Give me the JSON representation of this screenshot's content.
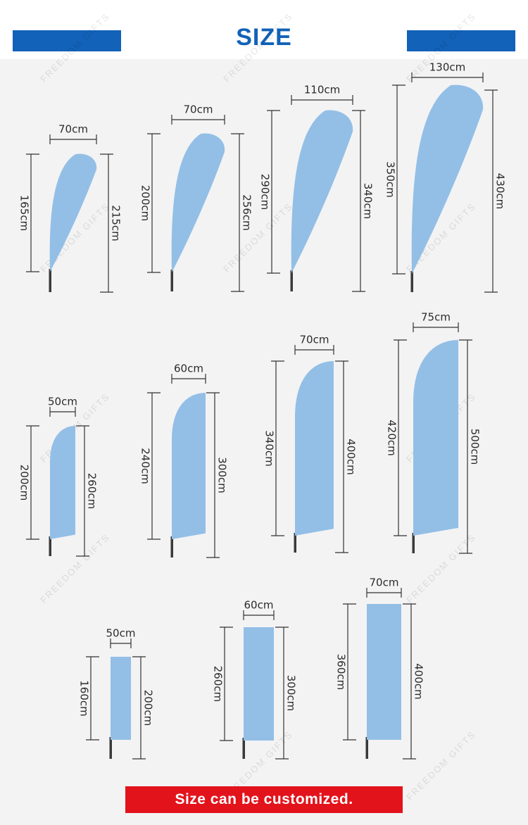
{
  "header": {
    "title": "SIZE"
  },
  "colors": {
    "brand_blue": "#1162b8",
    "flag_blue": "#93bfe6",
    "pole": "#3a3a3a",
    "footer_red": "#e3131b"
  },
  "watermark": "FREEDOM GIFTS",
  "flags": [
    {
      "shape": "feather",
      "width": "70cm",
      "flag_height": "165cm",
      "total_height": "215cm"
    },
    {
      "shape": "feather",
      "width": "70cm",
      "flag_height": "200cm",
      "total_height": "256cm"
    },
    {
      "shape": "feather",
      "width": "110cm",
      "flag_height": "290cm",
      "total_height": "340cm"
    },
    {
      "shape": "feather",
      "width": "130cm",
      "flag_height": "350cm",
      "total_height": "430cm"
    },
    {
      "shape": "teardrop-sail",
      "width": "50cm",
      "flag_height": "200cm",
      "total_height": "260cm"
    },
    {
      "shape": "teardrop-sail",
      "width": "60cm",
      "flag_height": "240cm",
      "total_height": "300cm"
    },
    {
      "shape": "teardrop-sail",
      "width": "70cm",
      "flag_height": "340cm",
      "total_height": "400cm"
    },
    {
      "shape": "teardrop-sail",
      "width": "75cm",
      "flag_height": "420cm",
      "total_height": "500cm"
    },
    {
      "shape": "rectangle",
      "width": "50cm",
      "flag_height": "160cm",
      "total_height": "200cm"
    },
    {
      "shape": "rectangle",
      "width": "60cm",
      "flag_height": "260cm",
      "total_height": "300cm"
    },
    {
      "shape": "rectangle",
      "width": "70cm",
      "flag_height": "360cm",
      "total_height": "400cm"
    }
  ],
  "footer": {
    "note": "Size can be customized."
  }
}
